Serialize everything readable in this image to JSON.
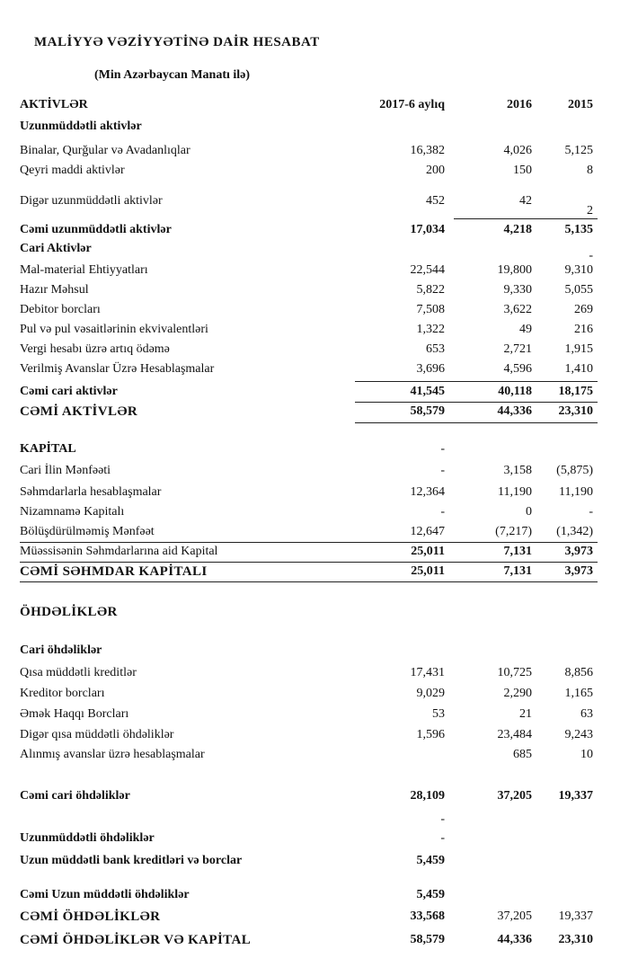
{
  "header": {
    "title": "MALİYYƏ VƏZİYYƏTİNƏ DAİR HESABAT",
    "subtitle": "(Min Azərbaycan Manatı ilə)"
  },
  "table": {
    "columns": [
      "AKTİVLƏR",
      "2017-6 aylıq",
      "2016",
      "2015"
    ],
    "rows": [
      {
        "label": "Uzunmüddətli aktivlər",
        "values": [
          null,
          null,
          null
        ]
      },
      {
        "label": "Binalar, Qurğular və Avadanlıqlar",
        "values": [
          "16,382",
          "4,026",
          "5,125"
        ]
      },
      {
        "label": "Qeyri maddi aktivlər",
        "values": [
          "200",
          "150",
          "8"
        ]
      },
      {
        "label": "Digər uzunmüddətli aktivlər",
        "values": [
          "452",
          "42",
          "2"
        ]
      },
      {
        "label": "Cəmi uzunmüddətli aktivlər",
        "values": [
          "17,034",
          "4,218",
          "5,135"
        ]
      },
      {
        "label": "Cari Aktivlər",
        "values": [
          null,
          null,
          "-"
        ]
      },
      {
        "label": "Mal-material Ehtiyyatları",
        "values": [
          "22,544",
          "19,800",
          "9,310"
        ]
      },
      {
        "label": "Hazır Məhsul",
        "values": [
          "5,822",
          "9,330",
          "5,055"
        ]
      },
      {
        "label": "Debitor borcları",
        "values": [
          "7,508",
          "3,622",
          "269"
        ]
      },
      {
        "label": "Pul və pul vəsaitlərinin ekvivalentləri",
        "values": [
          "1,322",
          "49",
          "216"
        ]
      },
      {
        "label": "Vergi hesabı üzrə artıq ödəmə",
        "values": [
          "653",
          "2,721",
          "1,915"
        ]
      },
      {
        "label": "Verilmiş Avanslar Üzrə Hesablaşmalar",
        "values": [
          "3,696",
          "4,596",
          "1,410"
        ]
      },
      {
        "label": "Cəmi cari aktivlər",
        "values": [
          "41,545",
          "40,118",
          "18,175"
        ]
      },
      {
        "label": "CƏMİ AKTİVLƏR",
        "values": [
          "58,579",
          "44,336",
          "23,310"
        ]
      },
      {
        "label": "KAPİTAL",
        "values": [
          "-",
          null,
          null
        ]
      },
      {
        "label": "Cari İlin Mənfəəti",
        "values": [
          "-",
          "3,158",
          "(5,875)"
        ]
      },
      {
        "label": "Səhmdarlarla hesablaşmalar",
        "values": [
          "12,364",
          "11,190",
          "11,190"
        ]
      },
      {
        "label": "Nizamnamə Kapitalı",
        "values": [
          "-",
          "0",
          "-"
        ]
      },
      {
        "label": "Bölüşdürülməmiş Mənfəət",
        "values": [
          "12,647",
          "(7,217)",
          "(1,342)"
        ]
      },
      {
        "label": "Müəssisənin Səhmdarlarına aid Kapital",
        "values": [
          "25,011",
          "7,131",
          "3,973"
        ]
      },
      {
        "label": "CƏMİ SƏHMDAR KAPİTALI",
        "values": [
          "25,011",
          "7,131",
          "3,973"
        ]
      },
      {
        "label": "ÖHDƏLİKLƏR",
        "values": [
          null,
          null,
          null
        ]
      },
      {
        "label": "Cari öhdəliklər",
        "values": [
          null,
          null,
          null
        ]
      },
      {
        "label": "Qısa müddətli kreditlər",
        "values": [
          "17,431",
          "10,725",
          "8,856"
        ]
      },
      {
        "label": "Kreditor borcları",
        "values": [
          "9,029",
          "2,290",
          "1,165"
        ]
      },
      {
        "label": "Əmək Haqqı Borcları",
        "values": [
          "53",
          "21",
          "63"
        ]
      },
      {
        "label": "Digər qısa müddətli öhdəliklər",
        "values": [
          "1,596",
          "23,484",
          "9,243"
        ]
      },
      {
        "label": "Alınmış avanslar üzrə hesablaşmalar",
        "values": [
          null,
          "685",
          "10"
        ]
      },
      {
        "label": "Cəmi cari öhdəliklər",
        "values": [
          "28,109",
          "37,205",
          "19,337"
        ]
      },
      {
        "label": null,
        "values": [
          "-",
          null,
          null
        ]
      },
      {
        "label": "Uzunmüddətli öhdəliklər",
        "values": [
          "-",
          null,
          null
        ]
      },
      {
        "label": "Uzun müddətli bank kreditləri və borclar",
        "values": [
          "5,459",
          null,
          null
        ]
      },
      {
        "label": "Cəmi Uzun müddətli öhdəliklər",
        "values": [
          "5,459",
          null,
          null
        ]
      },
      {
        "label": "CƏMİ ÖHDƏLİKLƏR",
        "values": [
          "33,568",
          "37,205",
          "19,337"
        ]
      },
      {
        "label": "CƏMİ ÖHDƏLİKLƏR VƏ KAPİTAL",
        "values": [
          "58,579",
          "44,336",
          "23,310"
        ]
      }
    ]
  }
}
